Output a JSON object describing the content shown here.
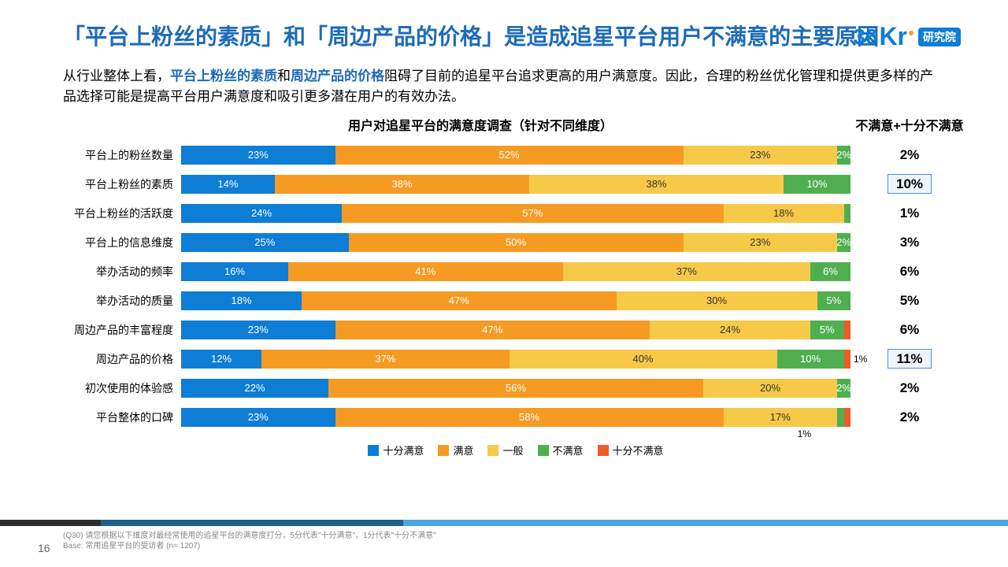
{
  "colors": {
    "title": "#1e6bb8",
    "text": "#333333",
    "very_satisfied": "#0d7dd6",
    "satisfied": "#f59b23",
    "neutral": "#f7c948",
    "dissatisfied": "#4faf4f",
    "very_dissatisfied": "#f05a28",
    "logo_blue": "#0d7dd6",
    "logo_orange": "#f59b23",
    "badge_bg": "#0d7dd6",
    "badge_text": "#ffffff"
  },
  "logo": {
    "part1": "36",
    "part2": "Kr",
    "badge": "研究院"
  },
  "title_parts": {
    "open": "「",
    "t1": "平台上粉丝的素质",
    "mid": "」和「",
    "t2": "周边产品的价格",
    "rest": "」是造成追星平台用户不满意的主要原因"
  },
  "subtitle_parts": {
    "p0": "从行业整体上看，",
    "b1": "平台上粉丝的素质",
    "p1": "和",
    "b2": "周边产品的价格",
    "p2": "阻碍了目前的追星平台追求更高的用户满意度。因此，合理的粉丝优化管理和提供更多样的产品选择可能是提高平台用户满意度和吸引更多潜在用户的有效办法。"
  },
  "chart": {
    "title": "用户对追星平台的满意度调查（针对不同维度）",
    "neg_header": "不满意+十分不满意",
    "legend": [
      "十分满意",
      "满意",
      "一般",
      "不满意",
      "十分不满意"
    ],
    "under_note": "1%",
    "rows": [
      {
        "label": "平台上的粉丝数量",
        "segs": [
          23,
          52,
          23,
          2,
          0
        ],
        "outside": "",
        "neg": "2%",
        "boxed": false
      },
      {
        "label": "平台上粉丝的素质",
        "segs": [
          14,
          38,
          38,
          10,
          0
        ],
        "outside": "",
        "neg": "10%",
        "boxed": true
      },
      {
        "label": "平台上粉丝的活跃度",
        "segs": [
          24,
          57,
          18,
          1,
          0
        ],
        "outside": "",
        "neg": "1%",
        "boxed": false
      },
      {
        "label": "平台上的信息维度",
        "segs": [
          25,
          50,
          23,
          2,
          0
        ],
        "outside": "",
        "neg": "3%",
        "boxed": false
      },
      {
        "label": "举办活动的频率",
        "segs": [
          16,
          41,
          37,
          6,
          0
        ],
        "outside": "",
        "neg": "6%",
        "boxed": false
      },
      {
        "label": "举办活动的质量",
        "segs": [
          18,
          47,
          30,
          5,
          0
        ],
        "outside": "",
        "neg": "5%",
        "boxed": false
      },
      {
        "label": "周边产品的丰富程度",
        "segs": [
          23,
          47,
          24,
          5,
          1
        ],
        "outside": "",
        "neg": "6%",
        "boxed": false
      },
      {
        "label": "周边产品的价格",
        "segs": [
          12,
          37,
          40,
          10,
          1
        ],
        "outside": "1%",
        "neg": "11%",
        "boxed": true
      },
      {
        "label": "初次使用的体验感",
        "segs": [
          22,
          56,
          20,
          2,
          0
        ],
        "outside": "",
        "neg": "2%",
        "boxed": false
      },
      {
        "label": "平台整体的口碑",
        "segs": [
          23,
          58,
          17,
          1,
          1
        ],
        "outside": "",
        "neg": "2%",
        "boxed": false
      }
    ]
  },
  "footer": {
    "pagenum": "16",
    "note1": "(Q30) 请您根据以下维度对最经常使用的追星平台的满意度打分，5分代表\"十分满意\"，1分代表\"十分不满意\"",
    "note2": "Base: 常用追星平台的受访者 (n= 1207)"
  }
}
